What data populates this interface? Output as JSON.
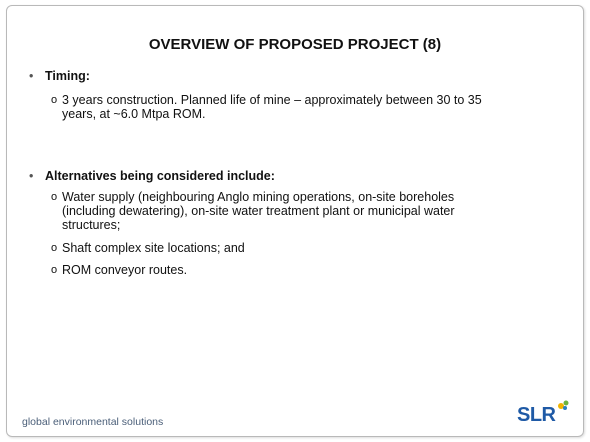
{
  "header": {
    "title": "OVERVIEW OF PROPOSED PROJECT (8)"
  },
  "sections": [
    {
      "heading": "Timing:",
      "items": [
        "3 years construction. Planned life of mine – approximately between 30 to 35 years, at ~6.0 Mtpa ROM."
      ]
    },
    {
      "heading": "Alternatives being considered include:",
      "items": [
        "Water supply (neighbouring Anglo mining operations, on-site boreholes (including dewatering), on-site water treatment plant or municipal water structures;",
        "Shaft complex site locations; and",
        "ROM conveyor routes."
      ]
    }
  ],
  "footer": {
    "tagline": "global environmental solutions",
    "logo": "SLR"
  }
}
